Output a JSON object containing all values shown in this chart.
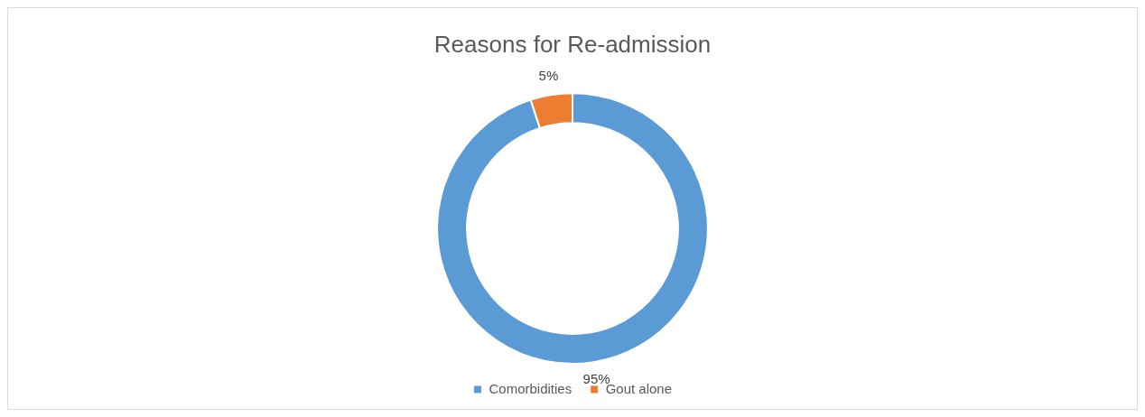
{
  "chart_data": {
    "type": "donut",
    "title": "Reasons for Re-admission",
    "categories": [
      "Comorbidities",
      "Gout alone"
    ],
    "values": [
      95,
      5
    ],
    "value_labels": [
      "95%",
      "5%"
    ],
    "colors": [
      "#5b9bd5",
      "#ed7d31"
    ],
    "legend": "bottom"
  }
}
